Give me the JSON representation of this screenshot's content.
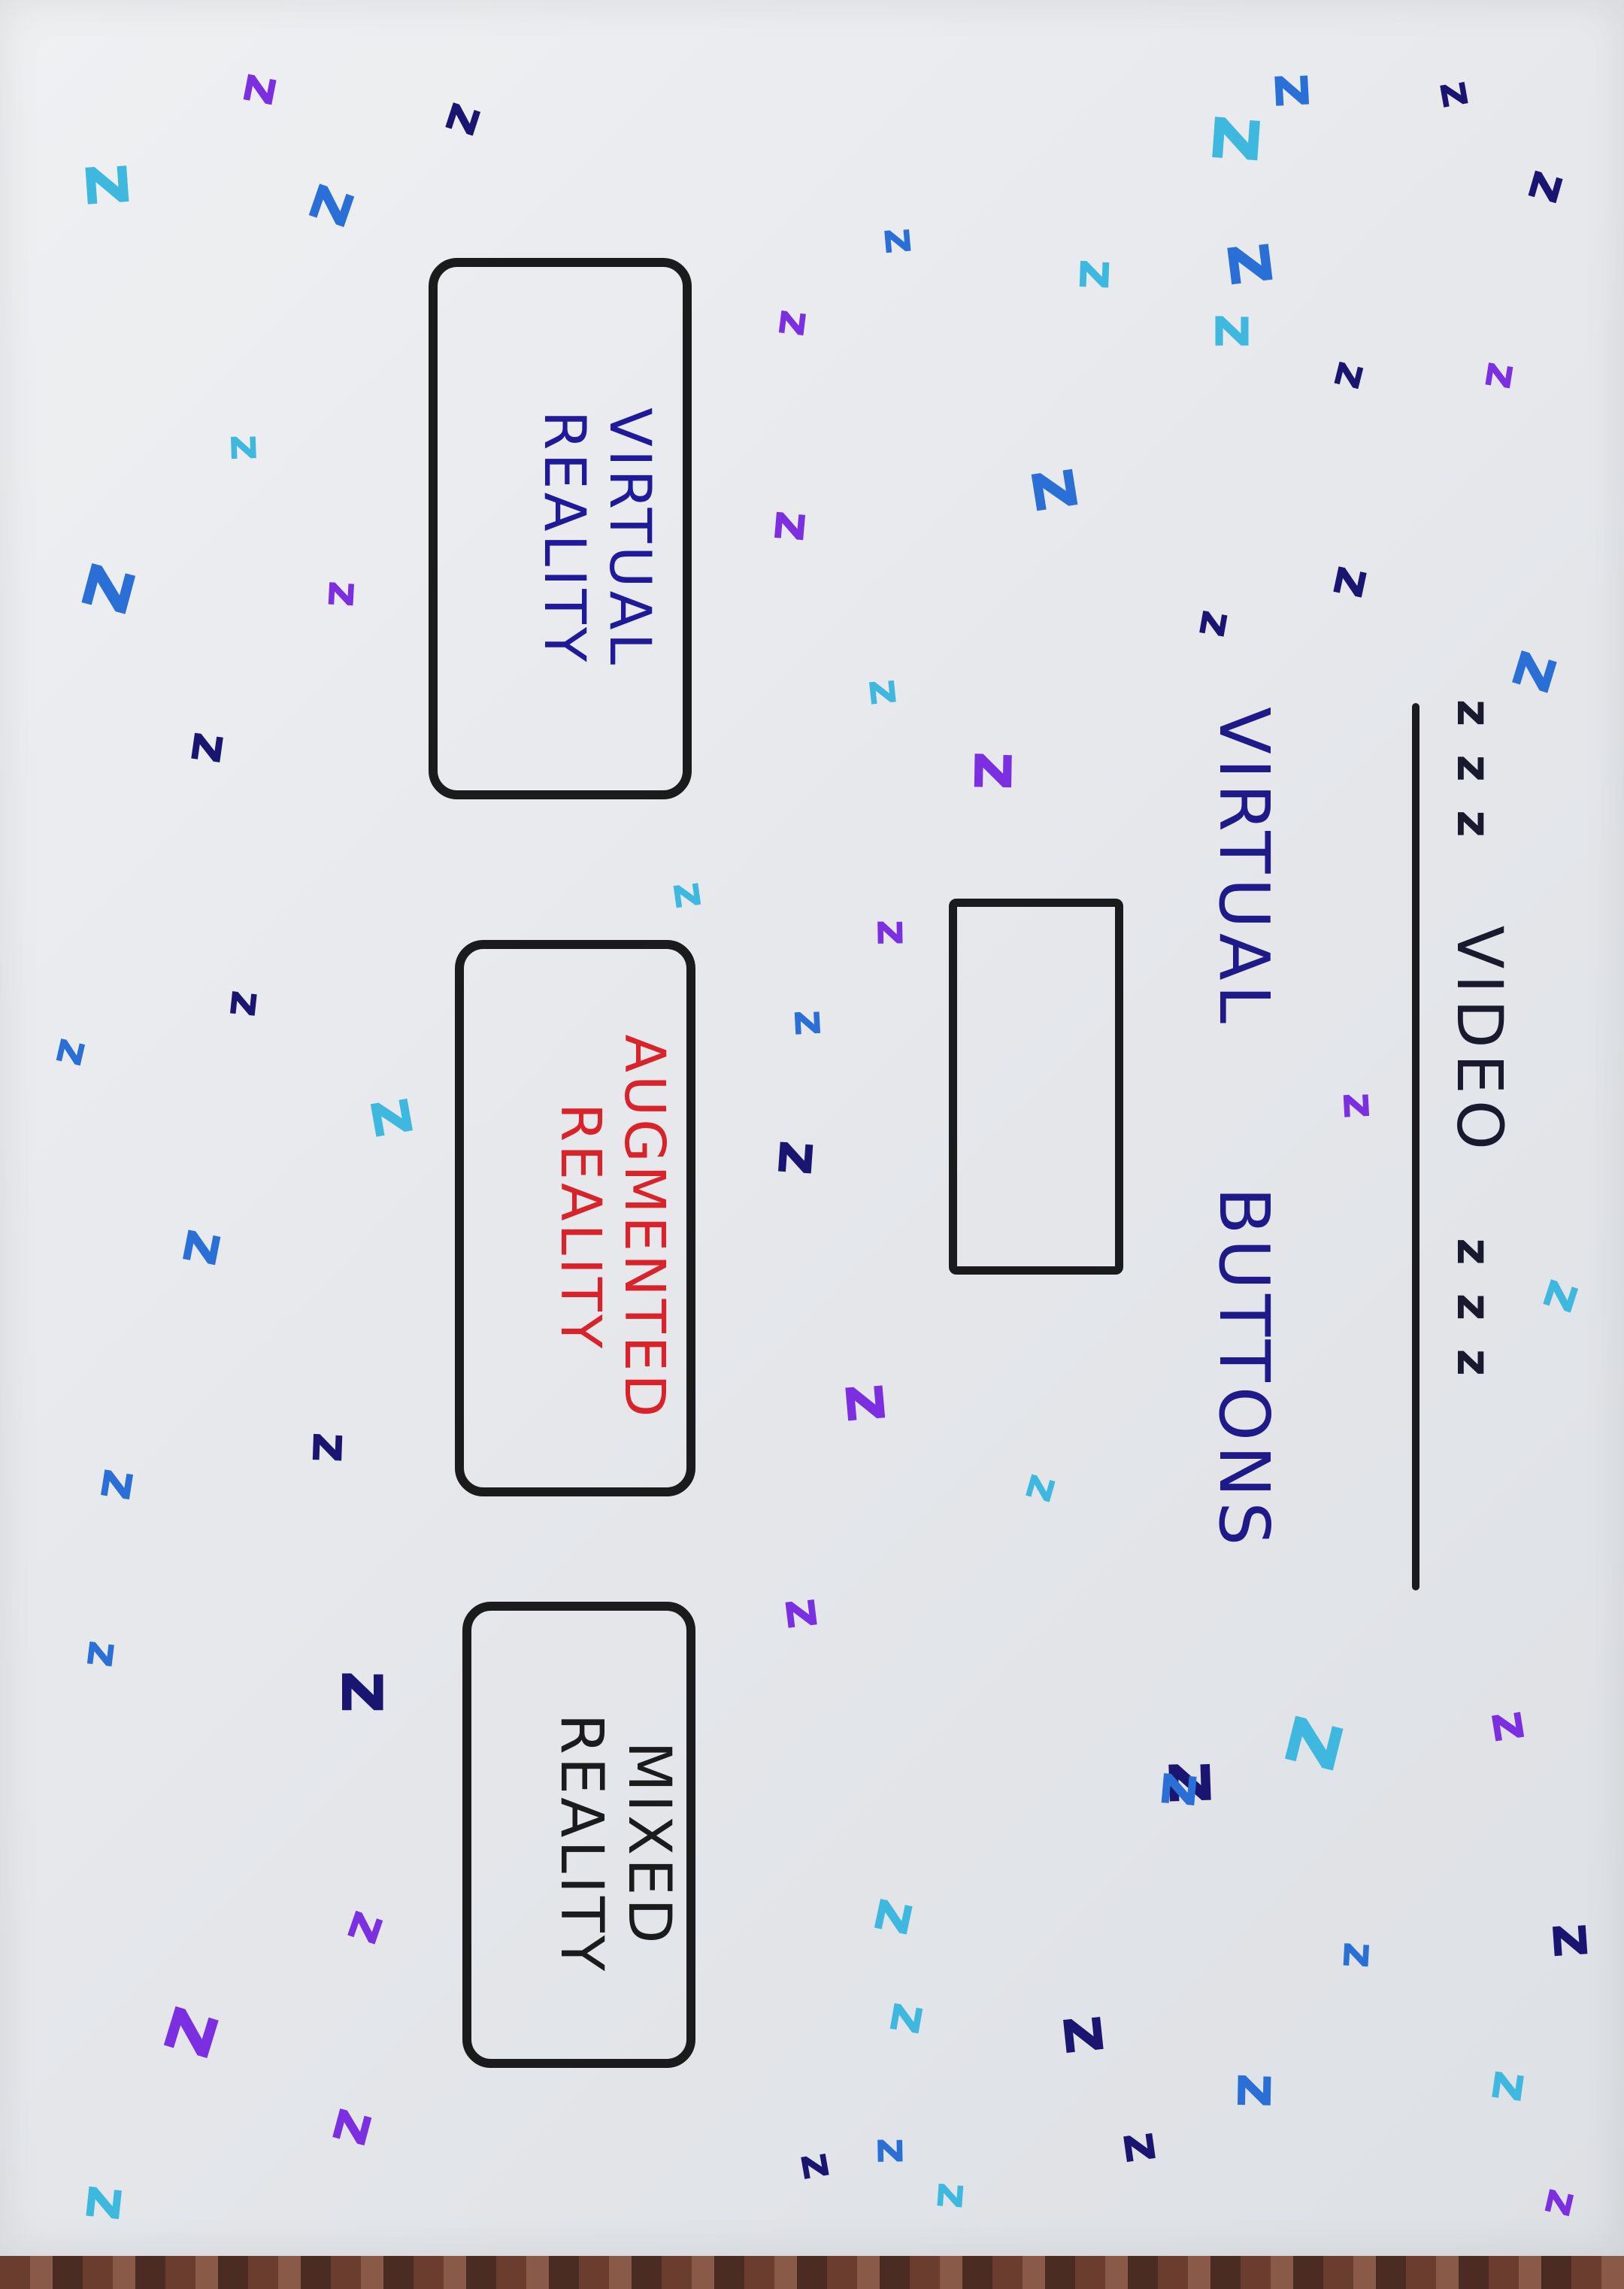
{
  "header": {
    "title": "VIDEO",
    "title_dots_before": "z z z",
    "title_dots_after": "z z z"
  },
  "subtitle": {
    "text": "VIRTUAL      BUTTONS"
  },
  "buttons": [
    {
      "line1": "VIRTUAL",
      "line2": "REALITY",
      "color": "#1f1a9a"
    },
    {
      "line1": "AUGMENTED",
      "line2": "REALITY",
      "color": "#d8232a"
    },
    {
      "line1": "MIXED",
      "line2": "REALITY",
      "color": "#1b1b1b"
    }
  ],
  "decoration": {
    "glyph": "z",
    "colors": [
      "#1a1570",
      "#2a6fd6",
      "#3fb8e0",
      "#7b2fe0"
    ]
  },
  "colors": {
    "paper": "#e8eaee",
    "ink": "#1b1b1b",
    "blue_ink": "#1f1a8a",
    "red_ink": "#d8232a"
  }
}
